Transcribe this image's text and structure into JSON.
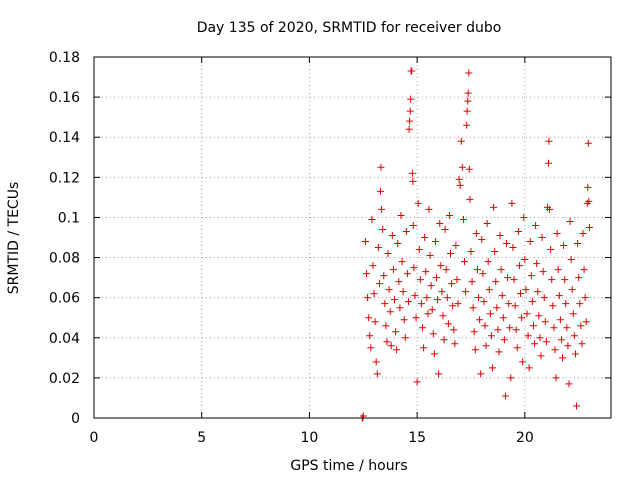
{
  "chart_data": {
    "type": "scatter",
    "title": "Day 135 of 2020, SRMTID for receiver dubo",
    "xlabel": "GPS time / hours",
    "ylabel": "SRMTID / TECUs",
    "xlim": [
      0,
      24
    ],
    "ylim": [
      0,
      0.18
    ],
    "xticks": [
      0,
      5,
      10,
      15,
      20
    ],
    "xtick_labels": [
      "0",
      "5",
      "10",
      "15",
      "20"
    ],
    "yticks": [
      0,
      0.02,
      0.04,
      0.06,
      0.08,
      0.1,
      0.12,
      0.14,
      0.16,
      0.18
    ],
    "ytick_labels": [
      "0",
      "0.02",
      "0.04",
      "0.06",
      "0.08",
      "0.1",
      "0.12",
      "0.14",
      "0.16",
      "0.18"
    ],
    "grid": true,
    "marker": "+",
    "color": "#e00000",
    "series": [
      {
        "name": "SRMTID",
        "points": [
          [
            12.45,
            0.0
          ],
          [
            12.47,
            0.0
          ],
          [
            12.5,
            0.001
          ],
          [
            12.6,
            0.088
          ],
          [
            12.65,
            0.072
          ],
          [
            12.7,
            0.06
          ],
          [
            12.75,
            0.05
          ],
          [
            12.8,
            0.041
          ],
          [
            12.85,
            0.035
          ],
          [
            12.9,
            0.099
          ],
          [
            12.95,
            0.076
          ],
          [
            13.0,
            0.062
          ],
          [
            13.05,
            0.048
          ],
          [
            13.1,
            0.028
          ],
          [
            13.15,
            0.022
          ],
          [
            13.2,
            0.085
          ],
          [
            13.25,
            0.067
          ],
          [
            13.3,
            0.113
          ],
          [
            13.32,
            0.125
          ],
          [
            13.35,
            0.104
          ],
          [
            13.4,
            0.094
          ],
          [
            13.45,
            0.071
          ],
          [
            13.5,
            0.057
          ],
          [
            13.55,
            0.046
          ],
          [
            13.6,
            0.038
          ],
          [
            13.65,
            0.082
          ],
          [
            13.7,
            0.064
          ],
          [
            13.75,
            0.053
          ],
          [
            13.8,
            0.036
          ],
          [
            13.85,
            0.091
          ],
          [
            13.9,
            0.074
          ],
          [
            13.95,
            0.059
          ],
          [
            14.0,
            0.043
          ],
          [
            14.05,
            0.034
          ],
          [
            14.1,
            0.087
          ],
          [
            14.15,
            0.068
          ],
          [
            14.2,
            0.055
          ],
          [
            14.25,
            0.101
          ],
          [
            14.3,
            0.078
          ],
          [
            14.35,
            0.063
          ],
          [
            14.4,
            0.049
          ],
          [
            14.45,
            0.04
          ],
          [
            14.5,
            0.093
          ],
          [
            14.55,
            0.072
          ],
          [
            14.6,
            0.058
          ],
          [
            14.63,
            0.144
          ],
          [
            14.65,
            0.148
          ],
          [
            14.68,
            0.153
          ],
          [
            14.7,
            0.159
          ],
          [
            14.72,
            0.173
          ],
          [
            14.75,
            0.173
          ],
          [
            14.78,
            0.122
          ],
          [
            14.8,
            0.118
          ],
          [
            14.82,
            0.096
          ],
          [
            14.85,
            0.075
          ],
          [
            14.9,
            0.061
          ],
          [
            14.95,
            0.05
          ],
          [
            15.0,
            0.018
          ],
          [
            15.05,
            0.107
          ],
          [
            15.1,
            0.084
          ],
          [
            15.15,
            0.069
          ],
          [
            15.2,
            0.057
          ],
          [
            15.25,
            0.045
          ],
          [
            15.3,
            0.035
          ],
          [
            15.35,
            0.09
          ],
          [
            15.4,
            0.073
          ],
          [
            15.45,
            0.06
          ],
          [
            15.5,
            0.052
          ],
          [
            15.55,
            0.104
          ],
          [
            15.6,
            0.081
          ],
          [
            15.65,
            0.066
          ],
          [
            15.7,
            0.054
          ],
          [
            15.75,
            0.042
          ],
          [
            15.8,
            0.032
          ],
          [
            15.85,
            0.088
          ],
          [
            15.9,
            0.07
          ],
          [
            15.95,
            0.059
          ],
          [
            16.0,
            0.022
          ],
          [
            16.05,
            0.097
          ],
          [
            16.1,
            0.076
          ],
          [
            16.15,
            0.063
          ],
          [
            16.2,
            0.051
          ],
          [
            16.25,
            0.039
          ],
          [
            16.3,
            0.094
          ],
          [
            16.35,
            0.074
          ],
          [
            16.4,
            0.06
          ],
          [
            16.45,
            0.047
          ],
          [
            16.5,
            0.101
          ],
          [
            16.55,
            0.082
          ],
          [
            16.6,
            0.067
          ],
          [
            16.65,
            0.056
          ],
          [
            16.7,
            0.044
          ],
          [
            16.75,
            0.037
          ],
          [
            16.8,
            0.086
          ],
          [
            16.85,
            0.069
          ],
          [
            16.9,
            0.057
          ],
          [
            16.95,
            0.119
          ],
          [
            17.0,
            0.116
          ],
          [
            17.05,
            0.138
          ],
          [
            17.1,
            0.125
          ],
          [
            17.15,
            0.099
          ],
          [
            17.2,
            0.078
          ],
          [
            17.25,
            0.063
          ],
          [
            17.3,
            0.146
          ],
          [
            17.32,
            0.153
          ],
          [
            17.35,
            0.158
          ],
          [
            17.37,
            0.162
          ],
          [
            17.4,
            0.172
          ],
          [
            17.42,
            0.124
          ],
          [
            17.45,
            0.109
          ],
          [
            17.5,
            0.083
          ],
          [
            17.55,
            0.068
          ],
          [
            17.6,
            0.055
          ],
          [
            17.65,
            0.043
          ],
          [
            17.7,
            0.034
          ],
          [
            17.75,
            0.092
          ],
          [
            17.8,
            0.074
          ],
          [
            17.85,
            0.06
          ],
          [
            17.9,
            0.049
          ],
          [
            17.95,
            0.022
          ],
          [
            18.0,
            0.089
          ],
          [
            18.05,
            0.072
          ],
          [
            18.1,
            0.058
          ],
          [
            18.15,
            0.046
          ],
          [
            18.2,
            0.036
          ],
          [
            18.25,
            0.097
          ],
          [
            18.3,
            0.078
          ],
          [
            18.35,
            0.064
          ],
          [
            18.4,
            0.052
          ],
          [
            18.45,
            0.041
          ],
          [
            18.5,
            0.025
          ],
          [
            18.55,
            0.105
          ],
          [
            18.6,
            0.083
          ],
          [
            18.65,
            0.068
          ],
          [
            18.7,
            0.055
          ],
          [
            18.75,
            0.044
          ],
          [
            18.8,
            0.033
          ],
          [
            18.85,
            0.091
          ],
          [
            18.9,
            0.074
          ],
          [
            18.95,
            0.061
          ],
          [
            19.0,
            0.05
          ],
          [
            19.05,
            0.039
          ],
          [
            19.1,
            0.011
          ],
          [
            19.15,
            0.087
          ],
          [
            19.2,
            0.07
          ],
          [
            19.25,
            0.057
          ],
          [
            19.3,
            0.045
          ],
          [
            19.35,
            0.02
          ],
          [
            19.4,
            0.107
          ],
          [
            19.45,
            0.085
          ],
          [
            19.5,
            0.069
          ],
          [
            19.55,
            0.056
          ],
          [
            19.6,
            0.044
          ],
          [
            19.65,
            0.035
          ],
          [
            19.7,
            0.093
          ],
          [
            19.75,
            0.076
          ],
          [
            19.8,
            0.062
          ],
          [
            19.85,
            0.05
          ],
          [
            19.9,
            0.028
          ],
          [
            19.95,
            0.1
          ],
          [
            20.0,
            0.079
          ],
          [
            20.05,
            0.064
          ],
          [
            20.1,
            0.052
          ],
          [
            20.15,
            0.041
          ],
          [
            20.2,
            0.025
          ],
          [
            20.25,
            0.088
          ],
          [
            20.3,
            0.071
          ],
          [
            20.35,
            0.058
          ],
          [
            20.4,
            0.046
          ],
          [
            20.45,
            0.037
          ],
          [
            20.5,
            0.096
          ],
          [
            20.55,
            0.077
          ],
          [
            20.6,
            0.063
          ],
          [
            20.65,
            0.051
          ],
          [
            20.7,
            0.04
          ],
          [
            20.75,
            0.031
          ],
          [
            20.8,
            0.09
          ],
          [
            20.85,
            0.073
          ],
          [
            20.9,
            0.06
          ],
          [
            20.95,
            0.048
          ],
          [
            21.0,
            0.038
          ],
          [
            21.05,
            0.105
          ],
          [
            21.1,
            0.127
          ],
          [
            21.12,
            0.138
          ],
          [
            21.15,
            0.104
          ],
          [
            21.2,
            0.084
          ],
          [
            21.25,
            0.069
          ],
          [
            21.3,
            0.056
          ],
          [
            21.35,
            0.045
          ],
          [
            21.4,
            0.034
          ],
          [
            21.45,
            0.02
          ],
          [
            21.5,
            0.092
          ],
          [
            21.55,
            0.074
          ],
          [
            21.6,
            0.061
          ],
          [
            21.65,
            0.049
          ],
          [
            21.7,
            0.039
          ],
          [
            21.75,
            0.03
          ],
          [
            21.8,
            0.086
          ],
          [
            21.85,
            0.069
          ],
          [
            21.9,
            0.057
          ],
          [
            21.95,
            0.045
          ],
          [
            22.0,
            0.036
          ],
          [
            22.05,
            0.017
          ],
          [
            22.1,
            0.098
          ],
          [
            22.15,
            0.079
          ],
          [
            22.2,
            0.064
          ],
          [
            22.25,
            0.052
          ],
          [
            22.3,
            0.041
          ],
          [
            22.35,
            0.032
          ],
          [
            22.4,
            0.006
          ],
          [
            22.45,
            0.087
          ],
          [
            22.5,
            0.07
          ],
          [
            22.55,
            0.057
          ],
          [
            22.6,
            0.046
          ],
          [
            22.65,
            0.037
          ],
          [
            22.7,
            0.092
          ],
          [
            22.75,
            0.074
          ],
          [
            22.8,
            0.06
          ],
          [
            22.85,
            0.048
          ],
          [
            22.9,
            0.107
          ],
          [
            22.92,
            0.115
          ],
          [
            22.95,
            0.137
          ],
          [
            22.97,
            0.108
          ],
          [
            23.0,
            0.095
          ]
        ]
      }
    ]
  }
}
